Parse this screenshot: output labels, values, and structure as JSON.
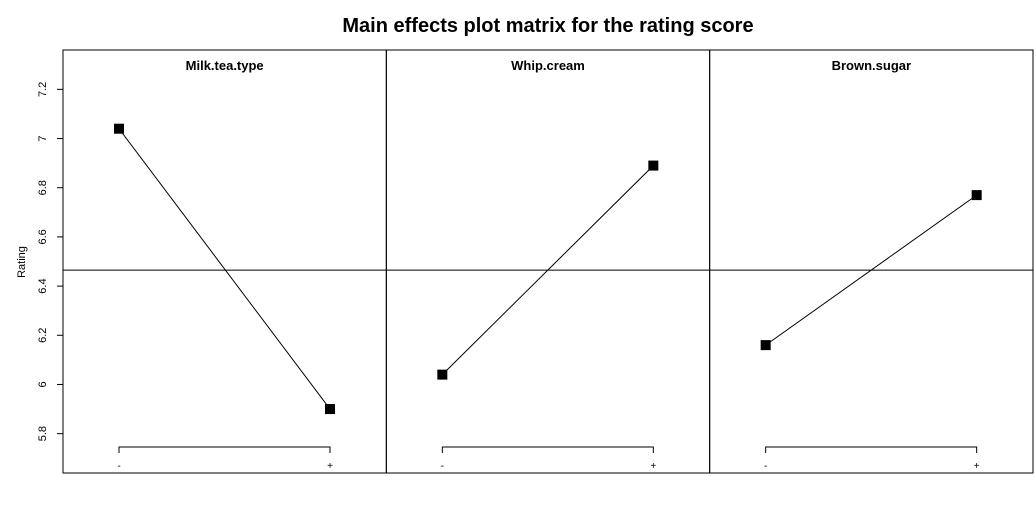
{
  "chart_data": {
    "type": "line",
    "title": "Main effects plot matrix for the rating score",
    "xlabel": "",
    "ylabel": "Rating",
    "ylim": [
      5.64,
      7.36
    ],
    "yticks": [
      "5.8",
      "6",
      "6.2",
      "6.4",
      "6.6",
      "6.8",
      "7",
      "7.2"
    ],
    "grand_mean": 6.465,
    "levels": [
      "-",
      "+"
    ],
    "grid": false,
    "panels": [
      {
        "name": "Milk.tea.type",
        "values": [
          7.04,
          5.9
        ]
      },
      {
        "name": "Whip.cream",
        "values": [
          6.04,
          6.89
        ]
      },
      {
        "name": "Brown.sugar",
        "values": [
          6.16,
          6.77
        ]
      }
    ]
  }
}
